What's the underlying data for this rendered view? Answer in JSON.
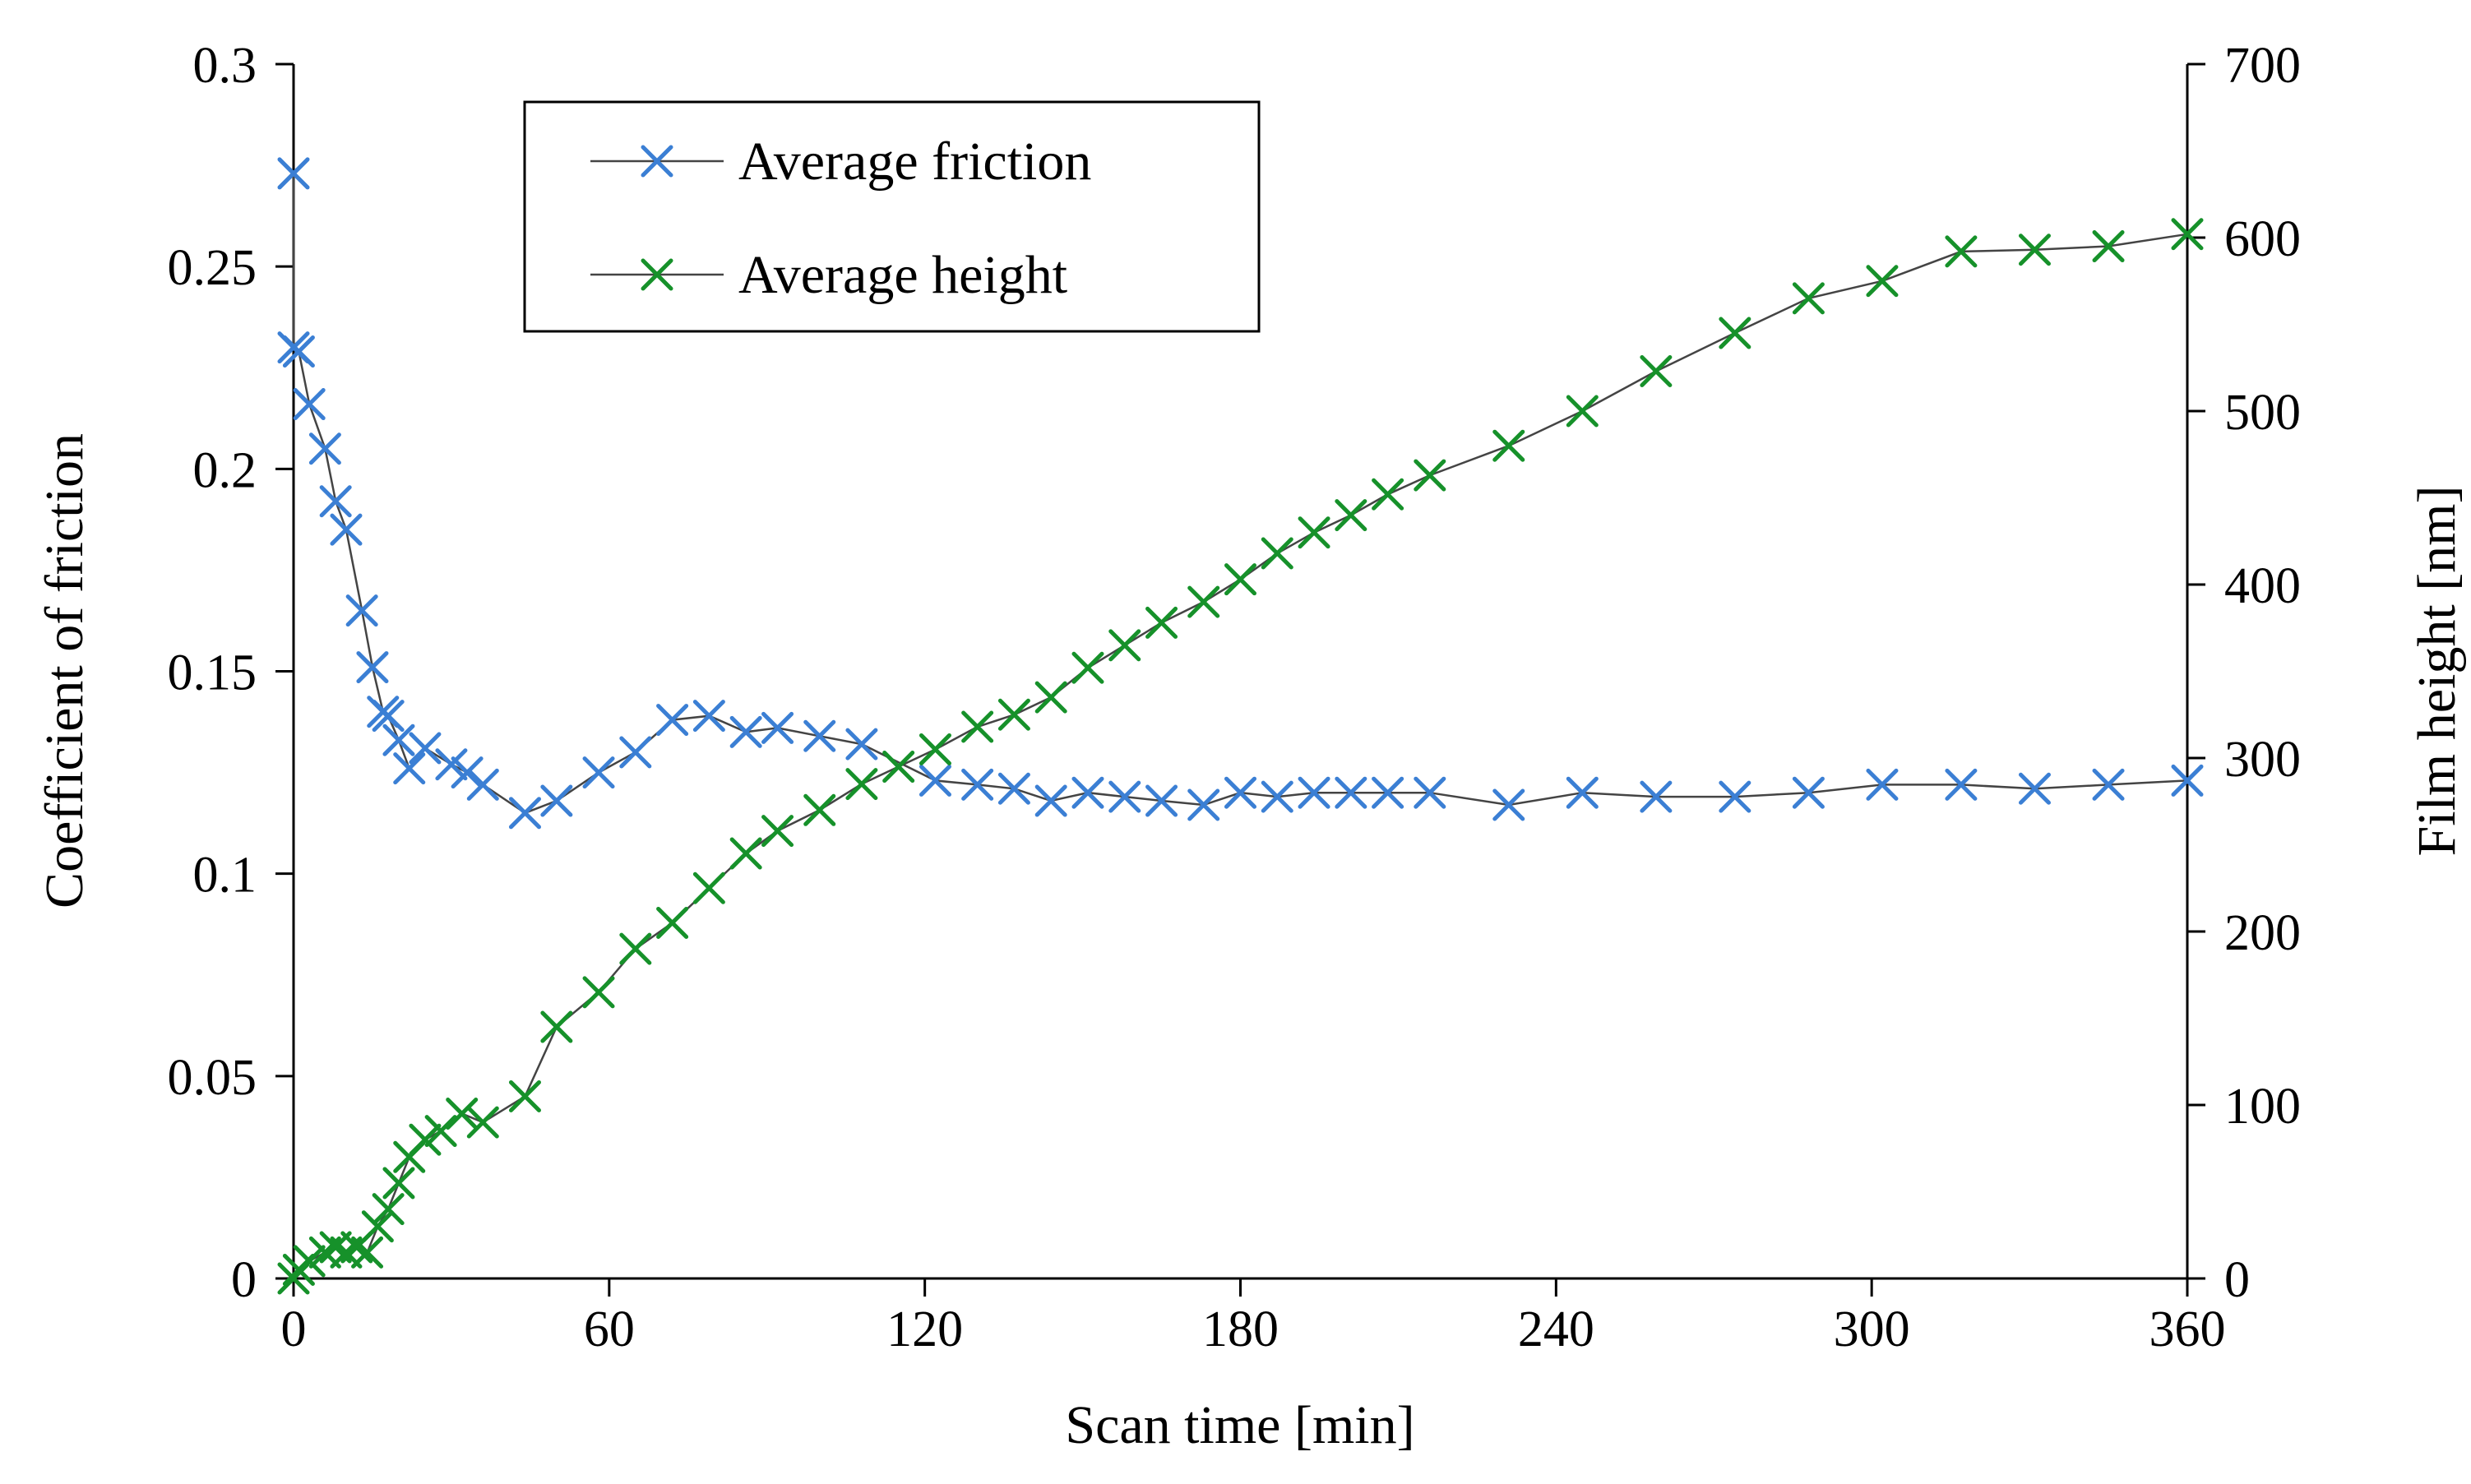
{
  "chart_data": {
    "type": "line",
    "title": "",
    "xlabel": "Scan time [min]",
    "ylabel_left": "Coefficient of friction",
    "ylabel_right": "Film height [nm]",
    "xlim": [
      0,
      360
    ],
    "ylim_left": [
      0,
      0.3
    ],
    "ylim_right": [
      0,
      700
    ],
    "x_ticks": [
      "0",
      "60",
      "120",
      "180",
      "240",
      "300",
      "360"
    ],
    "y_left_ticks": [
      "0",
      "0.05",
      "0.1",
      "0.15",
      "0.2",
      "0.25",
      "0.3"
    ],
    "y_right_ticks": [
      "0",
      "100",
      "200",
      "300",
      "400",
      "500",
      "600",
      "700"
    ],
    "grid": false,
    "legend_position": "top-left",
    "series": [
      {
        "name": "Average friction",
        "axis": "left",
        "color": "#3b7fd4",
        "marker": "x",
        "x": [
          0,
          0,
          1,
          3,
          6,
          8,
          10,
          13,
          15,
          17,
          18,
          20,
          22,
          25,
          30,
          33,
          36,
          44,
          50,
          58,
          65,
          72,
          79,
          86,
          92,
          100,
          108,
          122,
          130,
          137,
          144,
          151,
          158,
          165,
          173,
          180,
          187,
          194,
          201,
          208,
          216,
          231,
          245,
          259,
          274,
          288,
          302,
          317,
          331,
          345,
          360
        ],
        "y": [
          0.273,
          0.23,
          0.229,
          0.216,
          0.205,
          0.192,
          0.185,
          0.165,
          0.151,
          0.14,
          0.139,
          0.133,
          0.126,
          0.131,
          0.127,
          0.125,
          0.122,
          0.115,
          0.118,
          0.125,
          0.13,
          0.138,
          0.139,
          0.135,
          0.136,
          0.134,
          0.132,
          0.123,
          0.122,
          0.121,
          0.118,
          0.12,
          0.119,
          0.118,
          0.117,
          0.12,
          0.119,
          0.12,
          0.12,
          0.12,
          0.12,
          0.117,
          0.12,
          0.119,
          0.119,
          0.12,
          0.122,
          0.122,
          0.121,
          0.122,
          0.123
        ]
      },
      {
        "name": "Average height",
        "axis": "right",
        "color": "#16912a",
        "marker": "x",
        "x": [
          0,
          1,
          3,
          6,
          8,
          10,
          12,
          14,
          16,
          18,
          20,
          22,
          25,
          28,
          32,
          36,
          44,
          50,
          58,
          65,
          72,
          79,
          86,
          92,
          100,
          108,
          115,
          122,
          130,
          137,
          144,
          151,
          158,
          165,
          173,
          180,
          187,
          194,
          201,
          208,
          216,
          231,
          245,
          259,
          274,
          288,
          302,
          317,
          331,
          345,
          360
        ],
        "y": [
          0,
          5,
          10,
          15,
          18,
          15,
          18,
          15,
          30,
          40,
          55,
          70,
          80,
          85,
          95,
          90,
          105,
          145,
          165,
          190,
          205,
          225,
          245,
          258,
          270,
          285,
          295,
          305,
          318,
          325,
          335,
          352,
          365,
          378,
          390,
          403,
          418,
          430,
          440,
          452,
          463,
          480,
          500,
          523,
          545,
          565,
          575,
          592,
          593,
          595,
          602
        ]
      }
    ]
  }
}
